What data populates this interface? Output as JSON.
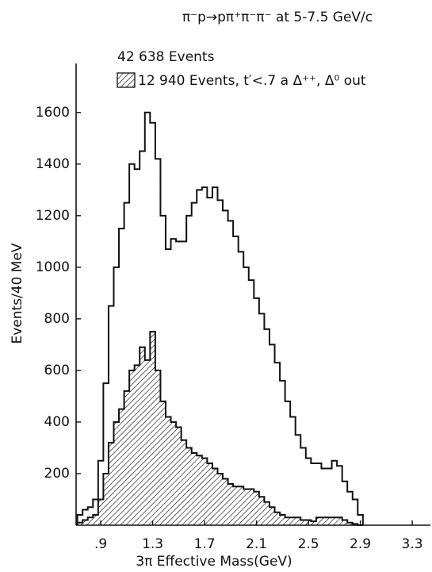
{
  "chart_data": {
    "type": "histogram",
    "title": "π⁻p→pπ⁺π⁻π⁻ at 5-7.5 GeV/c",
    "x_label": "3π Effective Mass(GeV)",
    "y_label": "Events/40 MeV",
    "bins": [
      0.72,
      0.76,
      0.8,
      0.84,
      0.88,
      0.92,
      0.96,
      1.0,
      1.04,
      1.08,
      1.12,
      1.16,
      1.2,
      1.24,
      1.28,
      1.32,
      1.36,
      1.4,
      1.44,
      1.48,
      1.52,
      1.56,
      1.6,
      1.64,
      1.68,
      1.72,
      1.76,
      1.8,
      1.84,
      1.88,
      1.92,
      1.96,
      2.0,
      2.04,
      2.08,
      2.12,
      2.16,
      2.2,
      2.24,
      2.28,
      2.32,
      2.36,
      2.4,
      2.44,
      2.48,
      2.52,
      2.56,
      2.6,
      2.64,
      2.68,
      2.72,
      2.76,
      2.8,
      2.84,
      2.88,
      2.92
    ],
    "series": [
      {
        "name": "42 638 Events",
        "color": "#111111",
        "values": [
          40,
          60,
          70,
          100,
          250,
          550,
          850,
          1000,
          1150,
          1250,
          1400,
          1380,
          1450,
          1600,
          1560,
          1420,
          1200,
          1070,
          1110,
          1100,
          1100,
          1200,
          1250,
          1300,
          1310,
          1270,
          1310,
          1260,
          1220,
          1180,
          1120,
          1060,
          1000,
          950,
          880,
          820,
          760,
          700,
          630,
          560,
          480,
          420,
          350,
          300,
          260,
          240,
          240,
          220,
          220,
          250,
          230,
          170,
          130,
          100,
          40
        ]
      },
      {
        "name": "12 940 Events, t′<.7 a Δ⁺⁺, Δ⁰ out",
        "color": "#111111",
        "values": [
          10,
          20,
          30,
          40,
          100,
          200,
          320,
          400,
          450,
          520,
          600,
          620,
          690,
          640,
          750,
          600,
          480,
          420,
          400,
          380,
          330,
          300,
          280,
          270,
          260,
          240,
          220,
          200,
          180,
          160,
          150,
          150,
          140,
          140,
          130,
          110,
          90,
          70,
          50,
          40,
          30,
          30,
          30,
          20,
          20,
          15,
          30,
          30,
          30,
          30,
          30,
          20,
          10,
          5,
          0
        ]
      }
    ],
    "xlim": [
      0.71,
      3.44
    ],
    "ylim": [
      0,
      1790
    ],
    "xticks": [
      {
        "value": 0.9,
        "label": ".9"
      },
      1.3,
      1.7,
      2.1,
      2.5,
      2.9,
      3.3
    ],
    "yticks": [
      200,
      400,
      600,
      800,
      1000,
      1200,
      1400,
      1600
    ]
  }
}
